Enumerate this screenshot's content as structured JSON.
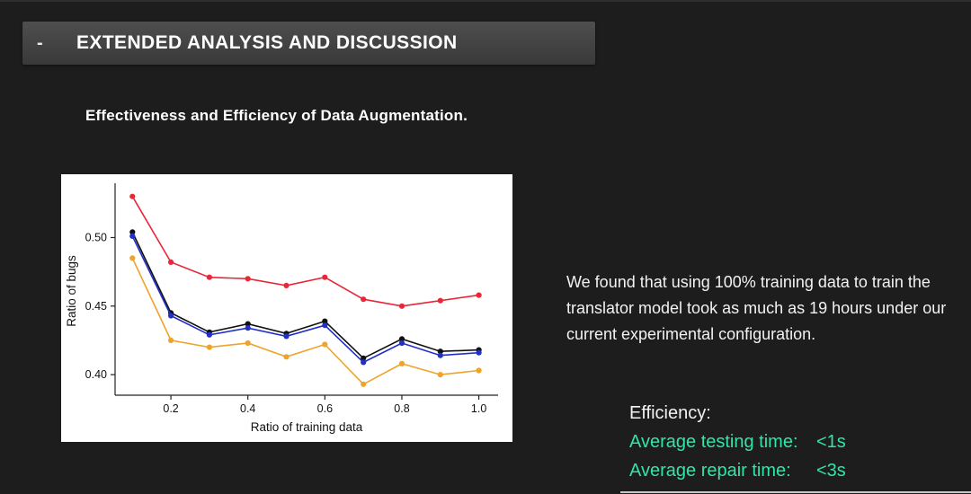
{
  "slide": {
    "title": "EXTENDED ANALYSIS AND DISCUSSION",
    "title_dash": "-",
    "subtitle": "Effectiveness and Efficiency of Data Augmentation.",
    "body_text": "We found that using 100% training data to train the translator model took as much as 19 hours under our current experimental configuration.",
    "efficiency_heading": "Efficiency:",
    "efficiency_lines": [
      {
        "label": "Average testing time:",
        "value": "<1s"
      },
      {
        "label": "Average repair time:",
        "value": "<3s"
      }
    ],
    "accent_color": "#35e2aa",
    "background_color": "#1d1d1d",
    "title_bar_color": "#424242"
  },
  "chart_data": {
    "type": "line",
    "title": "",
    "xlabel": "Ratio of training data",
    "ylabel": "Ratio of bugs",
    "x": [
      0.1,
      0.2,
      0.3,
      0.4,
      0.5,
      0.6,
      0.7,
      0.8,
      0.9,
      1.0
    ],
    "series": [
      {
        "name": "red-series",
        "color": "#e82838",
        "values": [
          0.53,
          0.482,
          0.471,
          0.47,
          0.465,
          0.471,
          0.455,
          0.45,
          0.454,
          0.458
        ]
      },
      {
        "name": "black-series",
        "color": "#111111",
        "values": [
          0.504,
          0.445,
          0.431,
          0.437,
          0.43,
          0.439,
          0.412,
          0.426,
          0.417,
          0.418
        ]
      },
      {
        "name": "blue-series",
        "color": "#2230c8",
        "values": [
          0.501,
          0.443,
          0.429,
          0.434,
          0.428,
          0.436,
          0.409,
          0.423,
          0.414,
          0.416
        ]
      },
      {
        "name": "orange-series",
        "color": "#efa32b",
        "values": [
          0.485,
          0.425,
          0.42,
          0.423,
          0.413,
          0.422,
          0.393,
          0.408,
          0.4,
          0.403
        ]
      }
    ],
    "xticks": [
      0.2,
      0.4,
      0.6,
      0.8,
      1.0
    ],
    "yticks": [
      0.4,
      0.45,
      0.5
    ],
    "xlim": [
      0.055,
      1.05
    ],
    "ylim": [
      0.385,
      0.537
    ],
    "grid": false,
    "legend": "none"
  }
}
